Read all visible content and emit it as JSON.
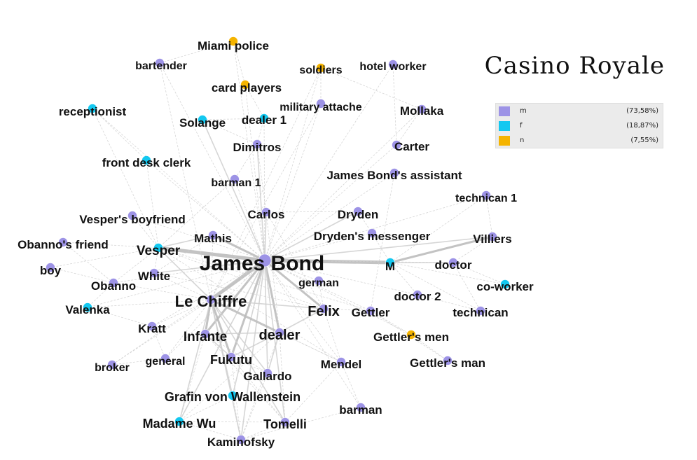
{
  "title": "Casino Royale",
  "legend": [
    {
      "label": "m",
      "percent": "(73,58%)",
      "color": "#9d93e6"
    },
    {
      "label": "f",
      "percent": "(18,87%)",
      "color": "#13c8f0"
    },
    {
      "label": "n",
      "percent": "(7,55%)",
      "color": "#f5b400"
    }
  ],
  "nodes": [
    {
      "id": "james-bond",
      "label": "James Bond",
      "group": "m"
    },
    {
      "id": "miami-police",
      "label": "Miami police",
      "group": "n"
    },
    {
      "id": "bartender",
      "label": "bartender",
      "group": "m"
    },
    {
      "id": "soldiers",
      "label": "soldiers",
      "group": "n"
    },
    {
      "id": "hotel-worker",
      "label": "hotel worker",
      "group": "m"
    },
    {
      "id": "card-players",
      "label": "card players",
      "group": "n"
    },
    {
      "id": "receptionist",
      "label": "receptionist",
      "group": "f"
    },
    {
      "id": "military-attache",
      "label": "military attache",
      "group": "m"
    },
    {
      "id": "mollaka",
      "label": "Mollaka",
      "group": "m"
    },
    {
      "id": "solange",
      "label": "Solange",
      "group": "f"
    },
    {
      "id": "dealer-1",
      "label": "dealer 1",
      "group": "f"
    },
    {
      "id": "dimitros",
      "label": "Dimitros",
      "group": "m"
    },
    {
      "id": "carter",
      "label": "Carter",
      "group": "m"
    },
    {
      "id": "front-desk-clerk",
      "label": "front desk clerk",
      "group": "f"
    },
    {
      "id": "james-bonds-assistant",
      "label": "James Bond's assistant",
      "group": "m"
    },
    {
      "id": "barman-1",
      "label": "barman 1",
      "group": "m"
    },
    {
      "id": "technican-1",
      "label": "technican 1",
      "group": "m"
    },
    {
      "id": "carlos",
      "label": "Carlos",
      "group": "m"
    },
    {
      "id": "dryden",
      "label": "Dryden",
      "group": "m"
    },
    {
      "id": "vespers-boyfriend",
      "label": "Vesper's boyfriend",
      "group": "m"
    },
    {
      "id": "mathis",
      "label": "Mathis",
      "group": "m"
    },
    {
      "id": "drydens-messenger",
      "label": "Dryden's messenger",
      "group": "m"
    },
    {
      "id": "villiers",
      "label": "Villiers",
      "group": "m"
    },
    {
      "id": "obannos-friend",
      "label": "Obanno's friend",
      "group": "m"
    },
    {
      "id": "vesper",
      "label": "Vesper",
      "group": "f"
    },
    {
      "id": "m",
      "label": "M",
      "group": "f"
    },
    {
      "id": "doctor",
      "label": "doctor",
      "group": "m"
    },
    {
      "id": "boy",
      "label": "boy",
      "group": "m"
    },
    {
      "id": "white",
      "label": "White",
      "group": "m"
    },
    {
      "id": "german",
      "label": "german",
      "group": "m"
    },
    {
      "id": "obanno",
      "label": "Obanno",
      "group": "m"
    },
    {
      "id": "co-worker",
      "label": "co-worker",
      "group": "f"
    },
    {
      "id": "doctor-2",
      "label": "doctor 2",
      "group": "m"
    },
    {
      "id": "le-chiffre",
      "label": "Le Chiffre",
      "group": "m"
    },
    {
      "id": "valenka",
      "label": "Valenka",
      "group": "f"
    },
    {
      "id": "felix",
      "label": "Felix",
      "group": "m"
    },
    {
      "id": "gettler",
      "label": "Gettler",
      "group": "m"
    },
    {
      "id": "technican",
      "label": "technican",
      "group": "m"
    },
    {
      "id": "kratt",
      "label": "Kratt",
      "group": "m"
    },
    {
      "id": "infante",
      "label": "Infante",
      "group": "m"
    },
    {
      "id": "dealer",
      "label": "dealer",
      "group": "m"
    },
    {
      "id": "gettlers-men",
      "label": "Gettler's men",
      "group": "n"
    },
    {
      "id": "broker",
      "label": "broker",
      "group": "m"
    },
    {
      "id": "general",
      "label": "general",
      "group": "m"
    },
    {
      "id": "fukutu",
      "label": "Fukutu",
      "group": "m"
    },
    {
      "id": "mendel",
      "label": "Mendel",
      "group": "m"
    },
    {
      "id": "gettlers-man",
      "label": "Gettler's man",
      "group": "m"
    },
    {
      "id": "gallardo",
      "label": "Gallardo",
      "group": "m"
    },
    {
      "id": "grafin-von-wallenstein",
      "label": "Grafin von Wallenstein",
      "group": "f"
    },
    {
      "id": "barman",
      "label": "barman",
      "group": "m"
    },
    {
      "id": "madame-wu",
      "label": "Madame Wu",
      "group": "f"
    },
    {
      "id": "tomelli",
      "label": "Tomelli",
      "group": "m"
    },
    {
      "id": "kaminofsky",
      "label": "Kaminofsky",
      "group": "m"
    }
  ]
}
